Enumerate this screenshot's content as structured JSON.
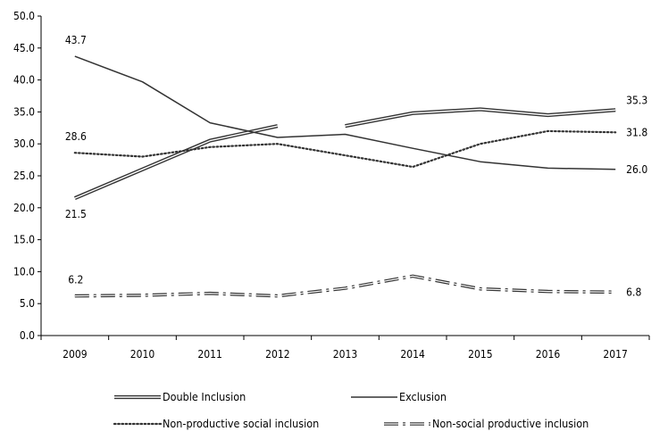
{
  "chart_data": {
    "type": "line",
    "title": "",
    "xlabel": "",
    "ylabel": "",
    "categories": [
      "2009",
      "2010",
      "2011",
      "2012",
      "2013",
      "2014",
      "2015",
      "2016",
      "2017"
    ],
    "ylim": [
      0,
      50
    ],
    "yticks": [
      "0.0",
      "5.0",
      "10.0",
      "15.0",
      "20.0",
      "25.0",
      "30.0",
      "35.0",
      "40.0",
      "45.0",
      "50.0"
    ],
    "grid": false,
    "legend_position": "bottom",
    "series": [
      {
        "name": "Double Inclusion",
        "style": "double",
        "values": [
          21.5,
          26.0,
          30.5,
          32.8,
          32.8,
          34.8,
          35.4,
          34.5,
          35.3
        ],
        "gaps": [
          [
            3,
            4
          ]
        ]
      },
      {
        "name": "Exclusion",
        "style": "solid",
        "values": [
          43.7,
          39.7,
          33.3,
          31.0,
          31.5,
          29.3,
          27.2,
          26.2,
          26.0
        ]
      },
      {
        "name": "Non-productive social inclusion",
        "style": "dotted",
        "values": [
          28.6,
          28.0,
          29.5,
          30.0,
          28.2,
          26.4,
          30.0,
          32.0,
          31.8
        ]
      },
      {
        "name": "Non-social productive inclusion",
        "style": "dash-dot",
        "values": [
          6.2,
          6.3,
          6.6,
          6.2,
          7.4,
          9.3,
          7.3,
          6.9,
          6.8
        ]
      }
    ],
    "annotations": [
      {
        "series": 1,
        "index": 0,
        "text": "43.7"
      },
      {
        "series": 2,
        "index": 0,
        "text": "28.6"
      },
      {
        "series": 0,
        "index": 0,
        "text": "21.5"
      },
      {
        "series": 3,
        "index": 0,
        "text": "6.2"
      },
      {
        "series": 0,
        "index": 8,
        "text": "35.3"
      },
      {
        "series": 2,
        "index": 8,
        "text": "31.8"
      },
      {
        "series": 1,
        "index": 8,
        "text": "26.0"
      },
      {
        "series": 3,
        "index": 8,
        "text": "6.8"
      }
    ]
  },
  "colors": {
    "line": "#333333",
    "axis": "#000000",
    "text": "#000000",
    "background": "#ffffff"
  }
}
